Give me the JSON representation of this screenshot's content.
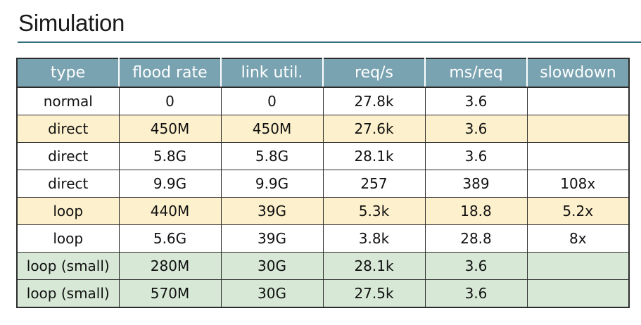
{
  "title": "Simulation",
  "table": {
    "headers": [
      "type",
      "flood rate",
      "link util.",
      "req/s",
      "ms/req",
      "slowdown"
    ],
    "rows": [
      {
        "highlight": "white",
        "cells": [
          "normal",
          "0",
          "0",
          "27.8k",
          "3.6",
          ""
        ]
      },
      {
        "highlight": "yellow",
        "cells": [
          "direct",
          "450M",
          "450M",
          "27.6k",
          "3.6",
          ""
        ]
      },
      {
        "highlight": "white",
        "cells": [
          "direct",
          "5.8G",
          "5.8G",
          "28.1k",
          "3.6",
          ""
        ]
      },
      {
        "highlight": "white",
        "cells": [
          "direct",
          "9.9G",
          "9.9G",
          "257",
          "389",
          "108x"
        ]
      },
      {
        "highlight": "yellow",
        "cells": [
          "loop",
          "440M",
          "39G",
          "5.3k",
          "18.8",
          "5.2x"
        ]
      },
      {
        "highlight": "white",
        "cells": [
          "loop",
          "5.6G",
          "39G",
          "3.8k",
          "28.8",
          "8x"
        ]
      },
      {
        "highlight": "green",
        "cells": [
          "loop (small)",
          "280M",
          "30G",
          "28.1k",
          "3.6",
          ""
        ]
      },
      {
        "highlight": "green",
        "cells": [
          "loop (small)",
          "570M",
          "30G",
          "27.5k",
          "3.6",
          ""
        ]
      }
    ]
  },
  "colors": {
    "header_bg": "#7aa3b1",
    "title_rule": "#2f6e7a",
    "highlight_yellow": "#fdf0cc",
    "highlight_green": "#d7e9d6"
  }
}
